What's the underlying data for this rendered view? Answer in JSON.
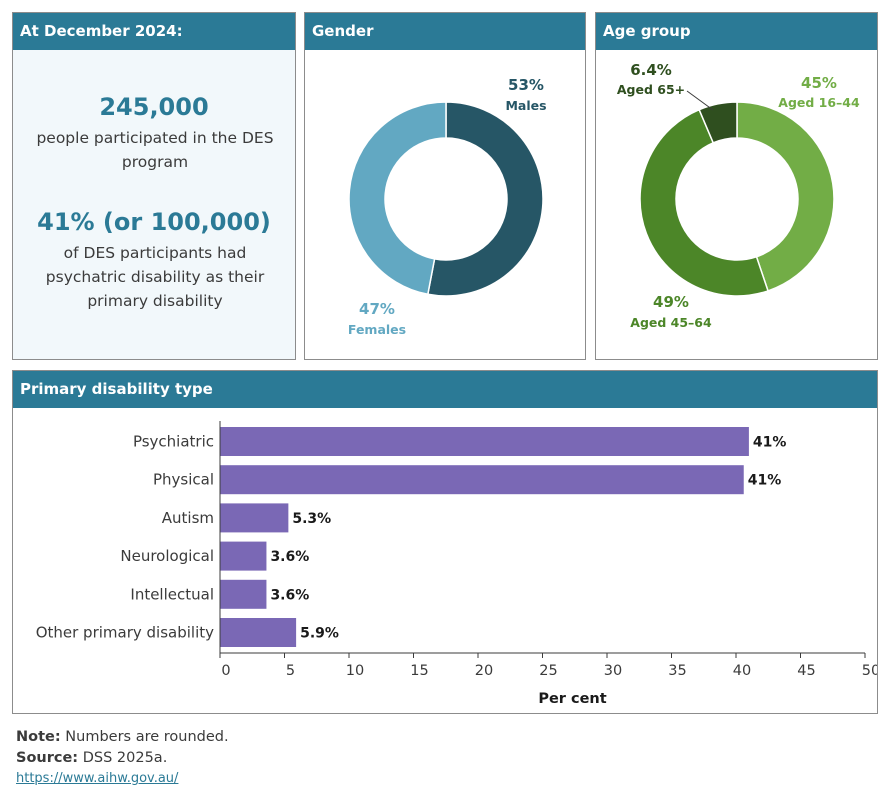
{
  "summary": {
    "header": "At December 2024:",
    "stat1_value": "245,000",
    "stat1_text_line1": "people participated in the DES",
    "stat1_text_line2": "program",
    "stat2_value": "41% (or 100,000)",
    "stat2_text_line1": "of DES participants had",
    "stat2_text_line2": "psychatric disability as their",
    "stat2_text_line3": "primary disability"
  },
  "colors": {
    "header": "#2b7a96",
    "males": "#265666",
    "females": "#62a8c2",
    "age_16_44": "#72ad46",
    "age_45_64": "#4c8628",
    "age_65_plus": "#2f4f1f",
    "bars": "#7a68b5"
  },
  "gender": {
    "header": "Gender",
    "males_pct": "53%",
    "males_label": "Males",
    "females_pct": "47%",
    "females_label": "Females"
  },
  "age": {
    "header": "Age group",
    "a1_pct": "45%",
    "a1_label": "Aged 16–44",
    "a2_pct": "49%",
    "a2_label": "Aged 45–64",
    "a3_pct": "6.4%",
    "a3_label": "Aged 65+"
  },
  "disability": {
    "header": "Primary disability type"
  },
  "chart_data": [
    {
      "type": "pie",
      "title": "Gender",
      "categories": [
        "Males",
        "Females"
      ],
      "values": [
        53,
        47
      ]
    },
    {
      "type": "pie",
      "title": "Age group",
      "categories": [
        "Aged 16–44",
        "Aged 45–64",
        "Aged 65+"
      ],
      "values": [
        45,
        49,
        6.4
      ]
    },
    {
      "type": "bar",
      "orientation": "horizontal",
      "title": "Primary disability type",
      "categories": [
        "Psychiatric",
        "Physical",
        "Autism",
        "Neurological",
        "Intellectual",
        "Other primary disability"
      ],
      "values": [
        41.0,
        40.6,
        5.3,
        3.6,
        3.6,
        5.9
      ],
      "data_labels": [
        "41%",
        "41%",
        "5.3%",
        "3.6%",
        "3.6%",
        "5.9%"
      ],
      "xlabel": "Per cent",
      "ylabel": "",
      "xlim": [
        0,
        50
      ],
      "xticks": [
        0,
        5,
        10,
        15,
        20,
        25,
        30,
        35,
        40,
        45,
        50
      ]
    }
  ],
  "footer": {
    "note_label": "Note:",
    "note_text": " Numbers are rounded.",
    "source_label": "Source:",
    "source_text": " DSS 2025a.",
    "link": "https://www.aihw.gov.au/"
  }
}
